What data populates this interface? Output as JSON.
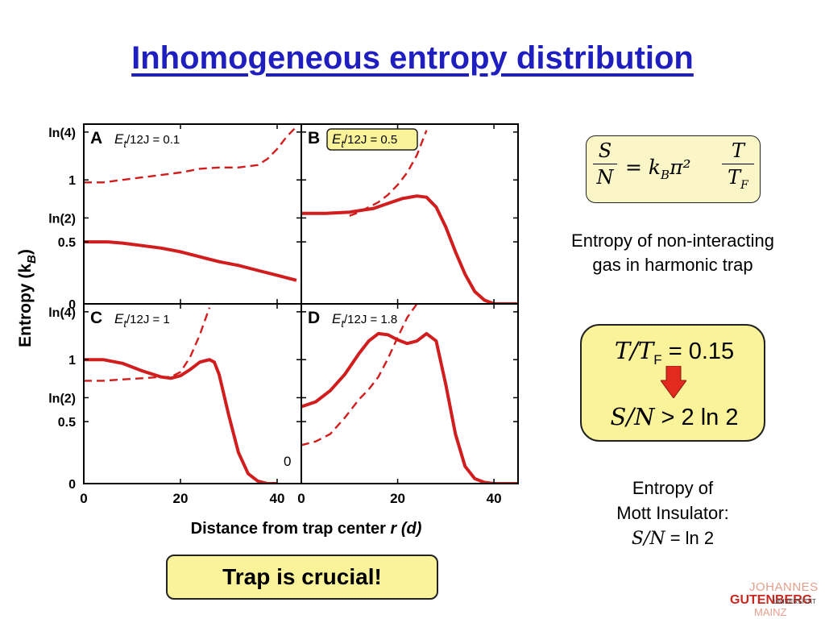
{
  "slide": {
    "title": "Inhomogeneous entropy distribution",
    "noninteracting_line1": "Entropy of non-interacting",
    "noninteracting_line2": "gas in harmonic trap",
    "ratio_box": {
      "line1_var": "T/T",
      "line1_sub": "F",
      "line1_rest": " = 0.15",
      "line2_var": "S/N",
      "line2_rest": " > 2 ln 2"
    },
    "mott_line1": "Entropy of",
    "mott_line2": "Mott Insulator:",
    "mott_line3_var": "S/N",
    "mott_line3_rest": " = ln 2",
    "trap_label": "Trap is crucial!",
    "logo": {
      "line1": "JOHANNES",
      "line2": "GUTENBERG",
      "line3": "UNIVERSITÄT",
      "line4": "MAINZ"
    },
    "formula": {
      "num_left": "S",
      "den_left": "N",
      "middle": "= k",
      "middle_sub": "B",
      "middle_rest": "π²",
      "num_right": "T",
      "den_right": "T",
      "den_right_sub": "F"
    },
    "colors": {
      "title": "#1f1fbf",
      "curve": "#d11d1d",
      "box_fill": "#fbf39a",
      "arrow": "#e22a1e"
    }
  },
  "chart_data": {
    "type": "line",
    "ylabel": "Entropy (k",
    "ylabel_sub": "B",
    "ylabel_end": ")",
    "xlabel": "Distance from trap center ",
    "xlabel_var": "r (d)",
    "x_ticks": [
      "0",
      "20",
      "40"
    ],
    "x_tick_values": [
      0,
      20,
      40
    ],
    "y_tick_labels": [
      "ln(4)",
      "1",
      "ln(2)",
      "0.5",
      "0"
    ],
    "y_tick_values": [
      1.386,
      1.0,
      0.693,
      0.5,
      0
    ],
    "xlim": [
      0,
      45
    ],
    "ylim": [
      0,
      1.45
    ],
    "panels": [
      {
        "label": "A",
        "param_prefix": "E",
        "param_sub": "t",
        "param_rest": "/12J = 0.1",
        "highlighted": false,
        "series": [
          {
            "style": "solid",
            "x": [
              0,
              5,
              8,
              12,
              16,
              20,
              24,
              28,
              32,
              36,
              40,
              44
            ],
            "y": [
              0.5,
              0.5,
              0.49,
              0.47,
              0.45,
              0.42,
              0.38,
              0.34,
              0.31,
              0.27,
              0.23,
              0.19
            ]
          },
          {
            "style": "dashed",
            "x": [
              0,
              4,
              8,
              12,
              16,
              20,
              24,
              28,
              32,
              36,
              38,
              40,
              42,
              44
            ],
            "y": [
              0.98,
              0.98,
              1.0,
              1.02,
              1.04,
              1.06,
              1.09,
              1.1,
              1.1,
              1.12,
              1.17,
              1.25,
              1.35,
              1.43
            ]
          }
        ]
      },
      {
        "label": "B",
        "param_prefix": "E",
        "param_sub": "t",
        "param_rest": "/12J = 0.5",
        "highlighted": true,
        "series": [
          {
            "style": "solid",
            "x": [
              0,
              5,
              10,
              15,
              18,
              21,
              24,
              26,
              28,
              30,
              32,
              34,
              36,
              38,
              40,
              43,
              45
            ],
            "y": [
              0.73,
              0.73,
              0.74,
              0.77,
              0.81,
              0.85,
              0.87,
              0.86,
              0.78,
              0.62,
              0.42,
              0.24,
              0.1,
              0.03,
              0.0,
              0.0,
              0.0
            ]
          },
          {
            "style": "dashed",
            "x": [
              10,
              12,
              14,
              16,
              18,
              20,
              22,
              24,
              26
            ],
            "y": [
              0.71,
              0.74,
              0.78,
              0.82,
              0.88,
              0.96,
              1.06,
              1.2,
              1.4
            ]
          }
        ]
      },
      {
        "label": "C",
        "param_prefix": "E",
        "param_sub": "t",
        "param_rest": "/12J = 1",
        "highlighted": false,
        "zero_annotation": "0",
        "series": [
          {
            "style": "solid",
            "x": [
              0,
              4,
              8,
              12,
              16,
              18,
              20,
              22,
              24,
              26,
              27,
              28,
              30,
              32,
              34,
              36,
              38,
              40
            ],
            "y": [
              1.0,
              1.0,
              0.97,
              0.91,
              0.86,
              0.85,
              0.87,
              0.92,
              0.98,
              1.0,
              0.98,
              0.88,
              0.55,
              0.25,
              0.08,
              0.02,
              0.0,
              0.0
            ]
          },
          {
            "style": "dashed",
            "x": [
              0,
              4,
              8,
              12,
              16,
              18,
              20,
              22,
              24,
              26
            ],
            "y": [
              0.83,
              0.83,
              0.84,
              0.85,
              0.86,
              0.86,
              0.9,
              1.02,
              1.2,
              1.42
            ]
          }
        ]
      },
      {
        "label": "D",
        "param_prefix": "E",
        "param_sub": "t",
        "param_rest": "/12J = 1.8",
        "highlighted": false,
        "series": [
          {
            "style": "solid",
            "x": [
              0,
              3,
              6,
              9,
              12,
              14,
              16,
              18,
              20,
              22,
              24,
              26,
              28,
              30,
              32,
              34,
              36,
              38,
              40,
              43,
              45
            ],
            "y": [
              0.62,
              0.66,
              0.75,
              0.88,
              1.05,
              1.15,
              1.21,
              1.2,
              1.16,
              1.13,
              1.15,
              1.21,
              1.15,
              0.8,
              0.4,
              0.14,
              0.04,
              0.01,
              0.0,
              0.0,
              0.0
            ]
          },
          {
            "style": "dashed",
            "x": [
              0,
              3,
              6,
              9,
              12,
              14,
              16,
              18,
              20,
              22,
              24
            ],
            "y": [
              0.31,
              0.34,
              0.4,
              0.53,
              0.68,
              0.76,
              0.86,
              1.01,
              1.18,
              1.34,
              1.45
            ]
          }
        ]
      }
    ],
    "grid": false
  }
}
